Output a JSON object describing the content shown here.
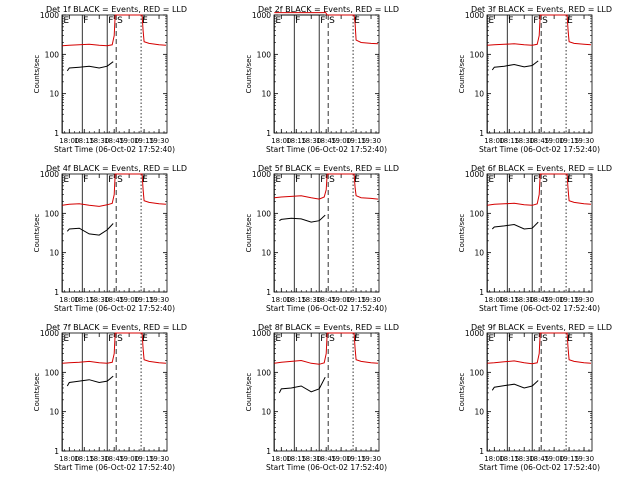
{
  "figure": {
    "start_time_label": "Start Time (06-Oct-02 17:52:40)",
    "ylabel": "Counts/sec"
  },
  "chart_data": [
    {
      "type": "line",
      "title": "Det 1f BLACK = Events, RED = LLD",
      "xlabel": "Start Time (06-Oct-02 17:52:40)",
      "ylabel": "Counts/sec",
      "y_scale": "log",
      "ylim": [
        1,
        1000
      ],
      "yticks": [
        "1",
        "10",
        "100",
        "1000"
      ],
      "xlim": [
        "17:52:40",
        "19:38:00"
      ],
      "xticks": [
        "18:00",
        "18:15",
        "18:30",
        "18:45",
        "19:00",
        "19:15",
        "19:30"
      ],
      "markers": [
        {
          "label": "E",
          "time": "17:53",
          "style": "solid"
        },
        {
          "label": "F",
          "time": "18:13",
          "style": "solid"
        },
        {
          "label": "F",
          "time": "18:38",
          "style": "solid"
        },
        {
          "label": "S",
          "time": "18:47",
          "style": "dashed"
        },
        {
          "label": "E",
          "time": "19:12",
          "style": "dotted"
        }
      ],
      "series": [
        {
          "color": "#d40000",
          "x": [
            "17:53",
            "18:00",
            "18:10",
            "18:20",
            "18:30",
            "18:38",
            "18:43",
            "18:45",
            "18:46",
            "19:13",
            "19:14",
            "19:15",
            "19:20",
            "19:30",
            "19:37"
          ],
          "values": [
            165,
            170,
            175,
            180,
            170,
            165,
            175,
            300,
            1000,
            1000,
            400,
            210,
            190,
            175,
            170
          ]
        },
        {
          "color": "#000000",
          "x": [
            "17:58",
            "18:00",
            "18:10",
            "18:20",
            "18:30",
            "18:38",
            "18:44"
          ],
          "values": [
            38,
            45,
            47,
            50,
            45,
            50,
            65
          ]
        }
      ]
    },
    {
      "type": "line",
      "title": "Det 2f BLACK = Events, RED = LLD",
      "xlabel": "Start Time (06-Oct-02 17:52:40)",
      "ylabel": "Counts/sec",
      "y_scale": "log",
      "ylim": [
        1,
        1000
      ],
      "yticks": [
        "1",
        "10",
        "100",
        "1000"
      ],
      "xlim": [
        "17:52:40",
        "19:38:00"
      ],
      "xticks": [
        "18:00",
        "18:15",
        "18:30",
        "18:45",
        "19:00",
        "19:15",
        "19:30"
      ],
      "markers": [
        {
          "label": "E",
          "time": "17:53",
          "style": "solid"
        },
        {
          "label": "F",
          "time": "18:13",
          "style": "solid"
        },
        {
          "label": "F",
          "time": "18:38",
          "style": "solid"
        },
        {
          "label": "S",
          "time": "18:47",
          "style": "dashed"
        },
        {
          "label": "E",
          "time": "19:12",
          "style": "dotted"
        }
      ],
      "series": [
        {
          "color": "#d40000",
          "x": [
            "17:53",
            "18:00",
            "18:10",
            "18:20",
            "18:30",
            "18:38",
            "18:43",
            "18:44",
            "18:46",
            "19:13",
            "19:14",
            "19:15",
            "19:20",
            "19:30",
            "19:37"
          ],
          "values": [
            1150,
            1150,
            1150,
            1150,
            1150,
            1150,
            1150,
            1200,
            1000,
            1000,
            600,
            230,
            200,
            190,
            185
          ]
        },
        {
          "color": "#000000",
          "x": [
            "18:00",
            "18:10",
            "18:20",
            "18:30",
            "18:38",
            "18:43"
          ],
          "values": [
            1000,
            1000,
            1000,
            1000,
            1000,
            1000
          ]
        }
      ]
    },
    {
      "type": "line",
      "title": "Det 3f BLACK = Events, RED = LLD",
      "xlabel": "Start Time (06-Oct-02 17:52:40)",
      "ylabel": "Counts/sec",
      "y_scale": "log",
      "ylim": [
        1,
        1000
      ],
      "yticks": [
        "1",
        "10",
        "100",
        "1000"
      ],
      "xlim": [
        "17:52:40",
        "19:38:00"
      ],
      "xticks": [
        "18:00",
        "18:15",
        "18:30",
        "18:45",
        "19:00",
        "19:15",
        "19:30"
      ],
      "markers": [
        {
          "label": "E",
          "time": "17:53",
          "style": "solid"
        },
        {
          "label": "F",
          "time": "18:13",
          "style": "solid"
        },
        {
          "label": "F",
          "time": "18:38",
          "style": "solid"
        },
        {
          "label": "S",
          "time": "18:47",
          "style": "dashed"
        },
        {
          "label": "E",
          "time": "19:12",
          "style": "dotted"
        }
      ],
      "series": [
        {
          "color": "#d40000",
          "x": [
            "17:53",
            "18:00",
            "18:10",
            "18:20",
            "18:30",
            "18:38",
            "18:43",
            "18:45",
            "18:46",
            "19:13",
            "19:14",
            "19:15",
            "19:20",
            "19:30",
            "19:37"
          ],
          "values": [
            170,
            175,
            180,
            185,
            175,
            170,
            180,
            300,
            1000,
            1000,
            400,
            210,
            190,
            180,
            175
          ]
        },
        {
          "color": "#000000",
          "x": [
            "17:58",
            "18:00",
            "18:10",
            "18:20",
            "18:30",
            "18:38",
            "18:44"
          ],
          "values": [
            40,
            47,
            50,
            55,
            48,
            52,
            68
          ]
        }
      ]
    },
    {
      "type": "line",
      "title": "Det 4f BLACK = Events, RED = LLD",
      "xlabel": "Start Time (06-Oct-02 17:52:40)",
      "ylabel": "Counts/sec",
      "y_scale": "log",
      "ylim": [
        1,
        1000
      ],
      "yticks": [
        "1",
        "10",
        "100",
        "1000"
      ],
      "xlim": [
        "17:52:40",
        "19:38:00"
      ],
      "xticks": [
        "18:00",
        "18:15",
        "18:30",
        "18:45",
        "19:00",
        "19:15",
        "19:30"
      ],
      "markers": [
        {
          "label": "E",
          "time": "17:53",
          "style": "solid"
        },
        {
          "label": "F",
          "time": "18:13",
          "style": "solid"
        },
        {
          "label": "F",
          "time": "18:38",
          "style": "solid"
        },
        {
          "label": "S",
          "time": "18:47",
          "style": "dashed"
        },
        {
          "label": "E",
          "time": "19:12",
          "style": "dotted"
        }
      ],
      "series": [
        {
          "color": "#d40000",
          "x": [
            "17:53",
            "18:00",
            "18:10",
            "18:20",
            "18:30",
            "18:38",
            "18:43",
            "18:45",
            "18:46",
            "19:13",
            "19:14",
            "19:15",
            "19:20",
            "19:30",
            "19:37"
          ],
          "values": [
            160,
            170,
            175,
            160,
            150,
            165,
            180,
            300,
            1000,
            1000,
            400,
            210,
            190,
            175,
            170
          ]
        },
        {
          "color": "#000000",
          "x": [
            "17:58",
            "18:00",
            "18:10",
            "18:20",
            "18:30",
            "18:38",
            "18:44"
          ],
          "values": [
            35,
            40,
            42,
            30,
            28,
            38,
            55
          ]
        }
      ]
    },
    {
      "type": "line",
      "title": "Det 5f BLACK = Events, RED = LLD",
      "xlabel": "Start Time (06-Oct-02 17:52:40)",
      "ylabel": "Counts/sec",
      "y_scale": "log",
      "ylim": [
        1,
        1000
      ],
      "yticks": [
        "1",
        "10",
        "100",
        "1000"
      ],
      "xlim": [
        "17:52:40",
        "19:38:00"
      ],
      "xticks": [
        "18:00",
        "18:15",
        "18:30",
        "18:45",
        "19:00",
        "19:15",
        "19:30"
      ],
      "markers": [
        {
          "label": "E",
          "time": "17:53",
          "style": "solid"
        },
        {
          "label": "F",
          "time": "18:13",
          "style": "solid"
        },
        {
          "label": "F",
          "time": "18:38",
          "style": "solid"
        },
        {
          "label": "S",
          "time": "18:47",
          "style": "dashed"
        },
        {
          "label": "E",
          "time": "19:12",
          "style": "dotted"
        }
      ],
      "series": [
        {
          "color": "#d40000",
          "x": [
            "17:53",
            "18:00",
            "18:10",
            "18:20",
            "18:30",
            "18:38",
            "18:43",
            "18:45",
            "18:46",
            "19:13",
            "19:14",
            "19:15",
            "19:20",
            "19:30",
            "19:37"
          ],
          "values": [
            250,
            260,
            270,
            280,
            250,
            230,
            260,
            400,
            1000,
            1000,
            450,
            280,
            250,
            240,
            230
          ]
        },
        {
          "color": "#000000",
          "x": [
            "17:58",
            "18:00",
            "18:10",
            "18:20",
            "18:30",
            "18:38",
            "18:44"
          ],
          "values": [
            65,
            70,
            75,
            72,
            60,
            65,
            90
          ]
        }
      ]
    },
    {
      "type": "line",
      "title": "Det 6f BLACK = Events, RED = LLD",
      "xlabel": "Start Time (06-Oct-02 17:52:40)",
      "ylabel": "Counts/sec",
      "y_scale": "log",
      "ylim": [
        1,
        1000
      ],
      "yticks": [
        "1",
        "10",
        "100",
        "1000"
      ],
      "xlim": [
        "17:52:40",
        "19:38:00"
      ],
      "xticks": [
        "18:00",
        "18:15",
        "18:30",
        "18:45",
        "19:00",
        "19:15",
        "19:30"
      ],
      "markers": [
        {
          "label": "E",
          "time": "17:53",
          "style": "solid"
        },
        {
          "label": "F",
          "time": "18:13",
          "style": "solid"
        },
        {
          "label": "F",
          "time": "18:38",
          "style": "solid"
        },
        {
          "label": "S",
          "time": "18:47",
          "style": "dashed"
        },
        {
          "label": "E",
          "time": "19:12",
          "style": "dotted"
        }
      ],
      "series": [
        {
          "color": "#d40000",
          "x": [
            "17:53",
            "18:00",
            "18:10",
            "18:20",
            "18:30",
            "18:38",
            "18:43",
            "18:45",
            "18:46",
            "19:13",
            "19:14",
            "19:15",
            "19:20",
            "19:30",
            "19:37"
          ],
          "values": [
            160,
            170,
            175,
            180,
            165,
            160,
            175,
            300,
            1000,
            1000,
            400,
            210,
            190,
            175,
            170
          ]
        },
        {
          "color": "#000000",
          "x": [
            "17:58",
            "18:00",
            "18:10",
            "18:20",
            "18:30",
            "18:38",
            "18:44"
          ],
          "values": [
            40,
            45,
            48,
            52,
            40,
            42,
            60
          ]
        }
      ]
    },
    {
      "type": "line",
      "title": "Det 7f BLACK = Events, RED = LLD",
      "xlabel": "Start Time (06-Oct-02 17:52:40)",
      "ylabel": "Counts/sec",
      "y_scale": "log",
      "ylim": [
        1,
        1000
      ],
      "yticks": [
        "1",
        "10",
        "100",
        "1000"
      ],
      "xlim": [
        "17:52:40",
        "19:38:00"
      ],
      "xticks": [
        "18:00",
        "18:15",
        "18:30",
        "18:45",
        "19:00",
        "19:15",
        "19:30"
      ],
      "markers": [
        {
          "label": "E",
          "time": "17:53",
          "style": "solid"
        },
        {
          "label": "F",
          "time": "18:13",
          "style": "solid"
        },
        {
          "label": "F",
          "time": "18:38",
          "style": "solid"
        },
        {
          "label": "S",
          "time": "18:47",
          "style": "dashed"
        },
        {
          "label": "E",
          "time": "19:12",
          "style": "dotted"
        }
      ],
      "series": [
        {
          "color": "#d40000",
          "x": [
            "17:53",
            "18:00",
            "18:10",
            "18:20",
            "18:30",
            "18:38",
            "18:43",
            "18:45",
            "18:46",
            "19:13",
            "19:14",
            "19:15",
            "19:20",
            "19:30",
            "19:37"
          ],
          "values": [
            170,
            175,
            180,
            190,
            175,
            170,
            180,
            300,
            1000,
            1000,
            400,
            210,
            190,
            175,
            170
          ]
        },
        {
          "color": "#000000",
          "x": [
            "17:58",
            "18:00",
            "18:10",
            "18:20",
            "18:30",
            "18:38",
            "18:44"
          ],
          "values": [
            45,
            55,
            60,
            65,
            55,
            60,
            80
          ]
        }
      ]
    },
    {
      "type": "line",
      "title": "Det 8f BLACK = Events, RED = LLD",
      "xlabel": "Start Time (06-Oct-02 17:52:40)",
      "ylabel": "Counts/sec",
      "y_scale": "log",
      "ylim": [
        1,
        1000
      ],
      "yticks": [
        "1",
        "10",
        "100",
        "1000"
      ],
      "xlim": [
        "17:52:40",
        "19:38:00"
      ],
      "xticks": [
        "18:00",
        "18:15",
        "18:30",
        "18:45",
        "19:00",
        "19:15",
        "19:30"
      ],
      "markers": [
        {
          "label": "E",
          "time": "17:53",
          "style": "solid"
        },
        {
          "label": "F",
          "time": "18:13",
          "style": "solid"
        },
        {
          "label": "F",
          "time": "18:38",
          "style": "solid"
        },
        {
          "label": "S",
          "time": "18:47",
          "style": "dashed"
        },
        {
          "label": "E",
          "time": "19:12",
          "style": "dotted"
        }
      ],
      "series": [
        {
          "color": "#d40000",
          "x": [
            "17:53",
            "18:00",
            "18:10",
            "18:20",
            "18:30",
            "18:38",
            "18:43",
            "18:45",
            "18:46",
            "19:13",
            "19:14",
            "19:15",
            "19:20",
            "19:30",
            "19:37"
          ],
          "values": [
            170,
            180,
            190,
            200,
            170,
            160,
            175,
            300,
            1000,
            1000,
            400,
            210,
            190,
            175,
            170
          ]
        },
        {
          "color": "#000000",
          "x": [
            "17:58",
            "18:00",
            "18:10",
            "18:20",
            "18:30",
            "18:38",
            "18:44"
          ],
          "values": [
            30,
            38,
            40,
            45,
            32,
            38,
            75
          ]
        }
      ]
    },
    {
      "type": "line",
      "title": "Det 9f BLACK = Events, RED = LLD",
      "xlabel": "Start Time (06-Oct-02 17:52:40)",
      "ylabel": "Counts/sec",
      "y_scale": "log",
      "ylim": [
        1,
        1000
      ],
      "yticks": [
        "1",
        "10",
        "100",
        "1000"
      ],
      "xlim": [
        "17:52:40",
        "19:38:00"
      ],
      "xticks": [
        "18:00",
        "18:15",
        "18:30",
        "18:45",
        "19:00",
        "19:15",
        "19:30"
      ],
      "markers": [
        {
          "label": "E",
          "time": "17:53",
          "style": "solid"
        },
        {
          "label": "F",
          "time": "18:13",
          "style": "solid"
        },
        {
          "label": "F",
          "time": "18:38",
          "style": "solid"
        },
        {
          "label": "S",
          "time": "18:47",
          "style": "dashed"
        },
        {
          "label": "E",
          "time": "19:12",
          "style": "dotted"
        }
      ],
      "series": [
        {
          "color": "#d40000",
          "x": [
            "17:53",
            "18:00",
            "18:10",
            "18:20",
            "18:30",
            "18:38",
            "18:43",
            "18:45",
            "18:46",
            "19:13",
            "19:14",
            "19:15",
            "19:20",
            "19:30",
            "19:37"
          ],
          "values": [
            170,
            175,
            185,
            195,
            175,
            165,
            175,
            300,
            1000,
            1000,
            400,
            210,
            190,
            175,
            170
          ]
        },
        {
          "color": "#000000",
          "x": [
            "17:58",
            "18:00",
            "18:10",
            "18:20",
            "18:30",
            "18:38",
            "18:44"
          ],
          "values": [
            35,
            42,
            46,
            50,
            40,
            45,
            62
          ]
        }
      ]
    }
  ]
}
